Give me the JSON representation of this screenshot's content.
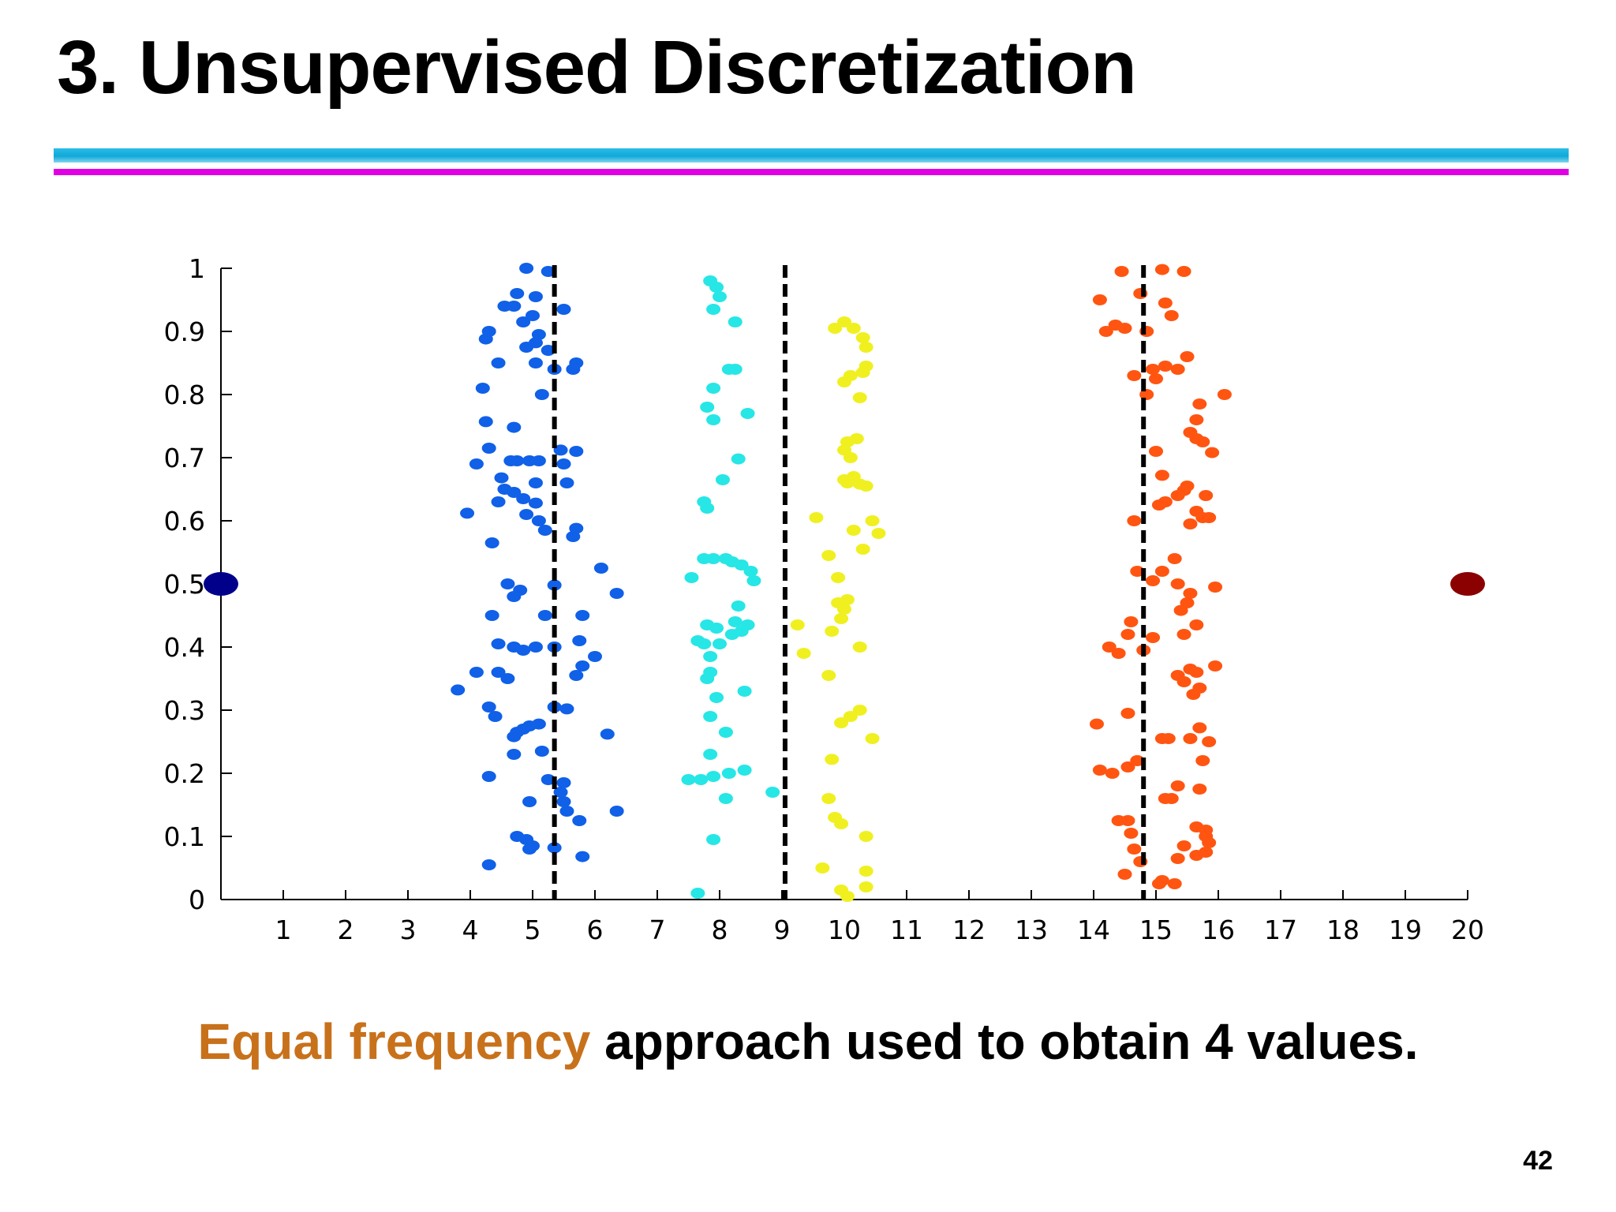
{
  "slide": {
    "title": "3. Unsupervised Discretization",
    "page_number": "42"
  },
  "caption": {
    "highlight": "Equal frequency",
    "rest": "approach used to obtain 4 values."
  },
  "colors": {
    "rule_cyan": "#1bb2e2",
    "rule_magenta": "#e100e6",
    "caption_highlight": "#c8711b",
    "boundary_line": "#000000"
  },
  "chart_data": {
    "type": "scatter",
    "title": "",
    "xlabel": "",
    "ylabel": "",
    "xlim": [
      0,
      20
    ],
    "ylim": [
      0,
      1
    ],
    "x_ticks": [
      1,
      2,
      3,
      4,
      5,
      6,
      7,
      8,
      9,
      10,
      11,
      12,
      13,
      14,
      15,
      16,
      17,
      18,
      19,
      20
    ],
    "y_ticks": [
      0,
      0.1,
      0.2,
      0.3,
      0.4,
      0.5,
      0.6,
      0.7,
      0.8,
      0.9,
      1
    ],
    "y_tick_labels": [
      "0",
      "0.1",
      "0.2",
      "0.3",
      "0.4",
      "0.5",
      "0.6",
      "0.7",
      "0.8",
      "0.9",
      "1"
    ],
    "grid": false,
    "legend": "none",
    "boundaries": [
      5.35,
      9.05,
      14.8
    ],
    "series": [
      {
        "color": "#1060e8",
        "points": [
          [
            4.9,
            1.0
          ],
          [
            5.25,
            0.995
          ],
          [
            4.75,
            0.96
          ],
          [
            5.05,
            0.955
          ],
          [
            4.55,
            0.94
          ],
          [
            4.7,
            0.94
          ],
          [
            5.5,
            0.935
          ],
          [
            5.0,
            0.925
          ],
          [
            4.85,
            0.915
          ],
          [
            4.3,
            0.9
          ],
          [
            4.25,
            0.888
          ],
          [
            5.1,
            0.895
          ],
          [
            5.05,
            0.882
          ],
          [
            4.9,
            0.875
          ],
          [
            5.25,
            0.87
          ],
          [
            4.45,
            0.85
          ],
          [
            5.05,
            0.85
          ],
          [
            5.7,
            0.85
          ],
          [
            5.35,
            0.84
          ],
          [
            5.65,
            0.84
          ],
          [
            4.2,
            0.81
          ],
          [
            5.15,
            0.8
          ],
          [
            4.25,
            0.757
          ],
          [
            4.7,
            0.748
          ],
          [
            4.3,
            0.715
          ],
          [
            5.45,
            0.712
          ],
          [
            5.7,
            0.71
          ],
          [
            4.65,
            0.695
          ],
          [
            4.75,
            0.695
          ],
          [
            4.95,
            0.695
          ],
          [
            5.1,
            0.695
          ],
          [
            4.1,
            0.69
          ],
          [
            5.5,
            0.69
          ],
          [
            4.5,
            0.668
          ],
          [
            5.55,
            0.66
          ],
          [
            5.05,
            0.66
          ],
          [
            4.55,
            0.65
          ],
          [
            4.7,
            0.645
          ],
          [
            4.85,
            0.635
          ],
          [
            4.45,
            0.63
          ],
          [
            5.05,
            0.628
          ],
          [
            4.9,
            0.61
          ],
          [
            5.1,
            0.6
          ],
          [
            3.95,
            0.612
          ],
          [
            5.2,
            0.585
          ],
          [
            5.7,
            0.588
          ],
          [
            5.65,
            0.575
          ],
          [
            4.35,
            0.565
          ],
          [
            6.1,
            0.525
          ],
          [
            5.35,
            0.498
          ],
          [
            4.6,
            0.5
          ],
          [
            4.8,
            0.49
          ],
          [
            6.35,
            0.485
          ],
          [
            4.7,
            0.48
          ],
          [
            4.35,
            0.45
          ],
          [
            5.2,
            0.45
          ],
          [
            5.8,
            0.45
          ],
          [
            4.45,
            0.405
          ],
          [
            4.7,
            0.4
          ],
          [
            4.85,
            0.395
          ],
          [
            5.05,
            0.4
          ],
          [
            5.35,
            0.4
          ],
          [
            5.75,
            0.41
          ],
          [
            6.0,
            0.385
          ],
          [
            5.8,
            0.37
          ],
          [
            4.1,
            0.36
          ],
          [
            4.45,
            0.36
          ],
          [
            4.6,
            0.35
          ],
          [
            5.7,
            0.355
          ],
          [
            3.8,
            0.332
          ],
          [
            4.3,
            0.305
          ],
          [
            5.35,
            0.305
          ],
          [
            5.55,
            0.302
          ],
          [
            4.4,
            0.29
          ],
          [
            5.1,
            0.278
          ],
          [
            4.95,
            0.275
          ],
          [
            4.85,
            0.27
          ],
          [
            4.75,
            0.265
          ],
          [
            4.7,
            0.258
          ],
          [
            6.2,
            0.262
          ],
          [
            4.7,
            0.23
          ],
          [
            5.15,
            0.235
          ],
          [
            4.3,
            0.195
          ],
          [
            5.25,
            0.19
          ],
          [
            5.5,
            0.185
          ],
          [
            5.45,
            0.17
          ],
          [
            5.5,
            0.155
          ],
          [
            4.95,
            0.155
          ],
          [
            6.35,
            0.14
          ],
          [
            5.55,
            0.14
          ],
          [
            5.75,
            0.125
          ],
          [
            4.75,
            0.1
          ],
          [
            4.9,
            0.095
          ],
          [
            5.0,
            0.085
          ],
          [
            4.95,
            0.08
          ],
          [
            5.35,
            0.082
          ],
          [
            5.8,
            0.068
          ],
          [
            4.3,
            0.055
          ]
        ]
      },
      {
        "color": "#27e6e6",
        "points": [
          [
            7.85,
            0.98
          ],
          [
            7.95,
            0.97
          ],
          [
            8.0,
            0.955
          ],
          [
            7.9,
            0.935
          ],
          [
            8.25,
            0.915
          ],
          [
            8.15,
            0.84
          ],
          [
            8.25,
            0.84
          ],
          [
            7.9,
            0.81
          ],
          [
            7.8,
            0.78
          ],
          [
            8.45,
            0.77
          ],
          [
            7.9,
            0.76
          ],
          [
            8.3,
            0.698
          ],
          [
            8.05,
            0.665
          ],
          [
            7.75,
            0.63
          ],
          [
            7.8,
            0.62
          ],
          [
            7.75,
            0.54
          ],
          [
            7.9,
            0.54
          ],
          [
            8.1,
            0.54
          ],
          [
            8.2,
            0.535
          ],
          [
            8.35,
            0.53
          ],
          [
            8.5,
            0.52
          ],
          [
            7.55,
            0.51
          ],
          [
            8.55,
            0.505
          ],
          [
            8.3,
            0.465
          ],
          [
            8.25,
            0.44
          ],
          [
            7.8,
            0.435
          ],
          [
            7.95,
            0.43
          ],
          [
            8.45,
            0.435
          ],
          [
            8.35,
            0.425
          ],
          [
            8.2,
            0.42
          ],
          [
            7.65,
            0.41
          ],
          [
            7.75,
            0.405
          ],
          [
            8.0,
            0.405
          ],
          [
            7.85,
            0.385
          ],
          [
            7.85,
            0.36
          ],
          [
            7.8,
            0.35
          ],
          [
            8.4,
            0.33
          ],
          [
            7.95,
            0.32
          ],
          [
            7.85,
            0.29
          ],
          [
            8.1,
            0.265
          ],
          [
            7.85,
            0.23
          ],
          [
            8.4,
            0.205
          ],
          [
            8.15,
            0.2
          ],
          [
            7.9,
            0.195
          ],
          [
            7.5,
            0.19
          ],
          [
            7.7,
            0.19
          ],
          [
            8.85,
            0.17
          ],
          [
            8.1,
            0.16
          ],
          [
            7.9,
            0.095
          ],
          [
            7.65,
            0.01
          ]
        ]
      },
      {
        "color": "#f0f020",
        "points": [
          [
            10.0,
            0.915
          ],
          [
            9.85,
            0.905
          ],
          [
            10.15,
            0.905
          ],
          [
            10.3,
            0.89
          ],
          [
            10.35,
            0.875
          ],
          [
            10.35,
            0.845
          ],
          [
            10.3,
            0.835
          ],
          [
            10.1,
            0.83
          ],
          [
            10.0,
            0.82
          ],
          [
            10.25,
            0.795
          ],
          [
            10.2,
            0.73
          ],
          [
            10.05,
            0.725
          ],
          [
            10.0,
            0.712
          ],
          [
            10.1,
            0.7
          ],
          [
            10.15,
            0.67
          ],
          [
            10.0,
            0.665
          ],
          [
            10.05,
            0.66
          ],
          [
            10.25,
            0.658
          ],
          [
            10.35,
            0.655
          ],
          [
            9.55,
            0.605
          ],
          [
            10.45,
            0.6
          ],
          [
            10.15,
            0.585
          ],
          [
            10.55,
            0.58
          ],
          [
            10.3,
            0.555
          ],
          [
            9.75,
            0.545
          ],
          [
            9.9,
            0.51
          ],
          [
            10.05,
            0.475
          ],
          [
            9.9,
            0.47
          ],
          [
            10.0,
            0.46
          ],
          [
            9.95,
            0.445
          ],
          [
            9.25,
            0.435
          ],
          [
            9.8,
            0.425
          ],
          [
            10.25,
            0.4
          ],
          [
            9.35,
            0.39
          ],
          [
            9.75,
            0.355
          ],
          [
            10.25,
            0.3
          ],
          [
            10.1,
            0.29
          ],
          [
            9.95,
            0.28
          ],
          [
            10.45,
            0.255
          ],
          [
            9.8,
            0.222
          ],
          [
            9.75,
            0.16
          ],
          [
            9.85,
            0.13
          ],
          [
            9.95,
            0.12
          ],
          [
            10.35,
            0.1
          ],
          [
            9.65,
            0.05
          ],
          [
            10.35,
            0.045
          ],
          [
            10.35,
            0.02
          ],
          [
            9.95,
            0.015
          ],
          [
            10.05,
            0.005
          ]
        ]
      },
      {
        "color": "#ff5511",
        "points": [
          [
            14.45,
            0.995
          ],
          [
            15.1,
            0.998
          ],
          [
            15.45,
            0.995
          ],
          [
            14.75,
            0.96
          ],
          [
            14.1,
            0.95
          ],
          [
            15.15,
            0.945
          ],
          [
            15.25,
            0.925
          ],
          [
            14.35,
            0.91
          ],
          [
            14.5,
            0.905
          ],
          [
            14.2,
            0.9
          ],
          [
            14.85,
            0.9
          ],
          [
            15.5,
            0.86
          ],
          [
            15.15,
            0.845
          ],
          [
            14.95,
            0.84
          ],
          [
            15.35,
            0.84
          ],
          [
            14.65,
            0.83
          ],
          [
            15.0,
            0.825
          ],
          [
            16.1,
            0.8
          ],
          [
            14.85,
            0.8
          ],
          [
            15.7,
            0.785
          ],
          [
            15.65,
            0.76
          ],
          [
            15.55,
            0.74
          ],
          [
            15.65,
            0.73
          ],
          [
            15.75,
            0.725
          ],
          [
            15.0,
            0.71
          ],
          [
            15.9,
            0.708
          ],
          [
            15.1,
            0.672
          ],
          [
            15.5,
            0.655
          ],
          [
            15.45,
            0.648
          ],
          [
            15.35,
            0.64
          ],
          [
            15.8,
            0.64
          ],
          [
            15.15,
            0.63
          ],
          [
            15.05,
            0.625
          ],
          [
            15.65,
            0.615
          ],
          [
            15.85,
            0.605
          ],
          [
            15.75,
            0.605
          ],
          [
            14.65,
            0.6
          ],
          [
            15.55,
            0.595
          ],
          [
            15.3,
            0.54
          ],
          [
            14.7,
            0.52
          ],
          [
            15.1,
            0.52
          ],
          [
            15.35,
            0.5
          ],
          [
            14.95,
            0.505
          ],
          [
            15.95,
            0.495
          ],
          [
            15.55,
            0.485
          ],
          [
            15.5,
            0.47
          ],
          [
            15.4,
            0.458
          ],
          [
            14.6,
            0.44
          ],
          [
            15.65,
            0.435
          ],
          [
            15.45,
            0.42
          ],
          [
            14.55,
            0.42
          ],
          [
            14.95,
            0.415
          ],
          [
            14.25,
            0.4
          ],
          [
            14.4,
            0.39
          ],
          [
            14.8,
            0.395
          ],
          [
            15.95,
            0.37
          ],
          [
            15.55,
            0.365
          ],
          [
            15.65,
            0.36
          ],
          [
            15.35,
            0.355
          ],
          [
            15.45,
            0.345
          ],
          [
            15.7,
            0.335
          ],
          [
            15.6,
            0.325
          ],
          [
            14.55,
            0.295
          ],
          [
            14.05,
            0.278
          ],
          [
            15.7,
            0.272
          ],
          [
            15.85,
            0.25
          ],
          [
            15.1,
            0.255
          ],
          [
            15.2,
            0.255
          ],
          [
            15.55,
            0.255
          ],
          [
            14.7,
            0.22
          ],
          [
            14.55,
            0.21
          ],
          [
            14.1,
            0.205
          ],
          [
            14.3,
            0.2
          ],
          [
            15.75,
            0.22
          ],
          [
            15.35,
            0.18
          ],
          [
            15.7,
            0.175
          ],
          [
            15.25,
            0.16
          ],
          [
            15.15,
            0.16
          ],
          [
            14.55,
            0.125
          ],
          [
            14.4,
            0.125
          ],
          [
            15.65,
            0.115
          ],
          [
            15.8,
            0.11
          ],
          [
            14.6,
            0.105
          ],
          [
            15.8,
            0.1
          ],
          [
            15.85,
            0.09
          ],
          [
            14.65,
            0.08
          ],
          [
            15.45,
            0.085
          ],
          [
            15.8,
            0.075
          ],
          [
            15.65,
            0.07
          ],
          [
            15.35,
            0.065
          ],
          [
            14.75,
            0.06
          ],
          [
            14.5,
            0.04
          ],
          [
            15.1,
            0.03
          ],
          [
            15.3,
            0.025
          ],
          [
            15.05,
            0.025
          ]
        ]
      },
      {
        "color": "#00008b",
        "points": [
          [
            0,
            0.5
          ]
        ]
      },
      {
        "color": "#8b0000",
        "points": [
          [
            20,
            0.5
          ]
        ]
      }
    ]
  }
}
